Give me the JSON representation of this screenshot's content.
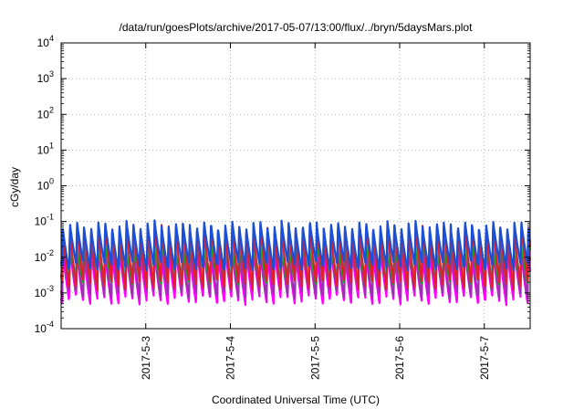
{
  "chart_data": {
    "type": "line",
    "title": "/data/run/goesPlots/archive/2017-05-07/13:00/flux/../bryn/5daysMars.plot",
    "xlabel": "Coordinated Universal Time (UTC)",
    "ylabel": "cGy/day",
    "yscale": "log",
    "ylim": [
      0.0001,
      10000
    ],
    "y_ticks": [
      {
        "base": "10",
        "exp": "-4",
        "value": 0.0001
      },
      {
        "base": "10",
        "exp": "-3",
        "value": 0.001
      },
      {
        "base": "10",
        "exp": "-2",
        "value": 0.01
      },
      {
        "base": "10",
        "exp": "-1",
        "value": 0.1
      },
      {
        "base": "10",
        "exp": "0",
        "value": 1
      },
      {
        "base": "10",
        "exp": "1",
        "value": 10
      },
      {
        "base": "10",
        "exp": "2",
        "value": 100
      },
      {
        "base": "10",
        "exp": "3",
        "value": 1000
      },
      {
        "base": "10",
        "exp": "4",
        "value": 10000
      }
    ],
    "xlim": [
      "2017-05-02 00:00",
      "2017-05-07 13:00"
    ],
    "x_ticks": [
      {
        "label": "2017-5-3",
        "date": "2017-05-03"
      },
      {
        "label": "2017-5-4",
        "date": "2017-05-04"
      },
      {
        "label": "2017-5-5",
        "date": "2017-05-05"
      },
      {
        "label": "2017-5-6",
        "date": "2017-05-06"
      },
      {
        "label": "2017-5-7",
        "date": "2017-05-07"
      }
    ],
    "grid": true,
    "legend": "none",
    "periodic_pattern": {
      "period_hours": 2.0,
      "first_peak": "2017-05-02 00:30",
      "shape": "sharp rise to peak, slow decay to trough"
    },
    "series": [
      {
        "color": "#1a4fd6",
        "peak": 0.085,
        "trough": 0.0055
      },
      {
        "color": "#e0202c",
        "peak": 0.07,
        "trough": 0.0016
      },
      {
        "color": "#18c8c8",
        "peak": 0.04,
        "trough": 0.0035
      },
      {
        "color": "#1aa61a",
        "peak": 0.03,
        "trough": 0.0022
      },
      {
        "color": "#9b30b0",
        "peak": 0.025,
        "trough": 0.0009
      },
      {
        "color": "#ff00ff",
        "peak": 0.015,
        "trough": 0.0006
      }
    ]
  }
}
